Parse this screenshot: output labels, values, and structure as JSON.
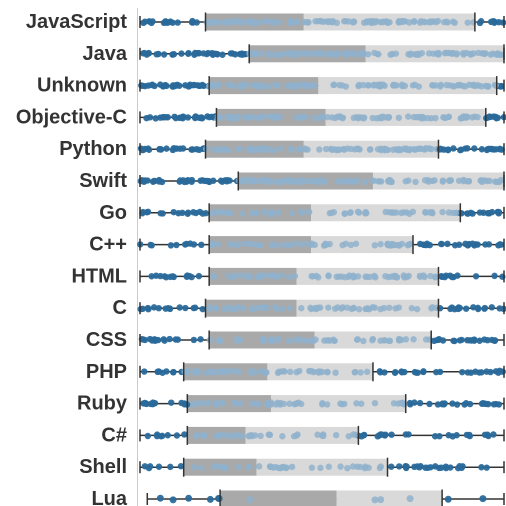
{
  "chart_data": {
    "type": "boxplot",
    "title": "",
    "xlabel": "",
    "ylabel": "",
    "xlim": [
      0,
      100
    ],
    "grid": false,
    "legend": "none",
    "colors": {
      "dot_outer": "#2a6a9b",
      "dot_inner": "#8fb2cc",
      "box_lower": "#a9a9a9",
      "box_upper": "#d9d9d9",
      "whisker": "#333333",
      "axis": "#cccccc"
    },
    "categories": [
      "JavaScript",
      "Java",
      "Unknown",
      "Objective-C",
      "Python",
      "Swift",
      "Go",
      "C++",
      "HTML",
      "C",
      "CSS",
      "PHP",
      "Ruby",
      "C#",
      "Shell",
      "Lua"
    ],
    "rows": [
      {
        "min": 0,
        "q1": 18,
        "median": 45,
        "q3": 92,
        "max": 100
      },
      {
        "min": 0,
        "q1": 30,
        "median": 62,
        "q3": 100,
        "max": 100
      },
      {
        "min": 0,
        "q1": 19,
        "median": 49,
        "q3": 98,
        "max": 100
      },
      {
        "min": 0,
        "q1": 21,
        "median": 51,
        "q3": 95,
        "max": 100
      },
      {
        "min": 0,
        "q1": 18,
        "median": 45,
        "q3": 82,
        "max": 100
      },
      {
        "min": 0,
        "q1": 27,
        "median": 64,
        "q3": 100,
        "max": 100
      },
      {
        "min": 0,
        "q1": 19,
        "median": 47,
        "q3": 88,
        "max": 100
      },
      {
        "min": 0,
        "q1": 19,
        "median": 47,
        "q3": 75,
        "max": 100
      },
      {
        "min": 0,
        "q1": 19,
        "median": 43,
        "q3": 82,
        "max": 100
      },
      {
        "min": 0,
        "q1": 18,
        "median": 43,
        "q3": 82,
        "max": 100
      },
      {
        "min": 0,
        "q1": 19,
        "median": 48,
        "q3": 80,
        "max": 100
      },
      {
        "min": 0,
        "q1": 12,
        "median": 35,
        "q3": 64,
        "max": 100
      },
      {
        "min": 0,
        "q1": 13,
        "median": 36,
        "q3": 73,
        "max": 100
      },
      {
        "min": 0,
        "q1": 13,
        "median": 29,
        "q3": 60,
        "max": 100
      },
      {
        "min": 0,
        "q1": 12,
        "median": 32,
        "q3": 68,
        "max": 100
      },
      {
        "min": 2,
        "q1": 22,
        "median": 54,
        "q3": 83,
        "max": 100
      }
    ]
  }
}
